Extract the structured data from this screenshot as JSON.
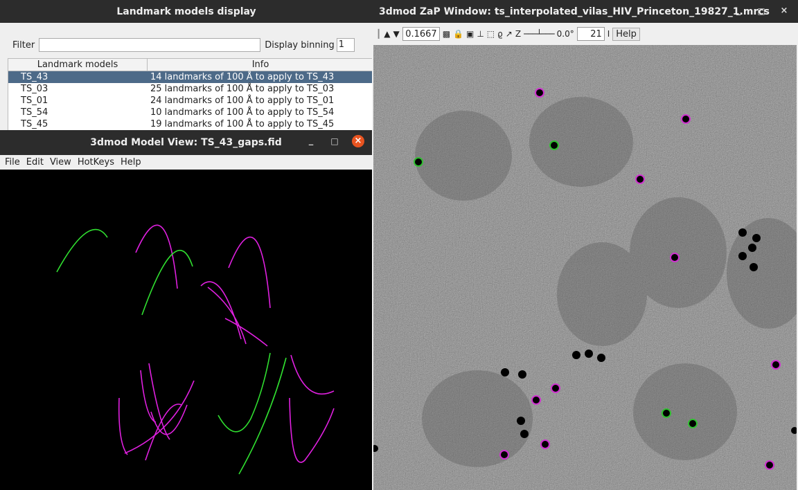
{
  "landmark_window": {
    "title": "Landmark models display",
    "filter_label": "Filter",
    "filter_value": "",
    "binning_label": "Display binning",
    "binning_value": "1",
    "columns": [
      "Landmark models",
      "Info"
    ],
    "rows": [
      {
        "model": "TS_43",
        "info": "14 landmarks of 100 Å to apply to TS_43",
        "selected": true
      },
      {
        "model": "TS_03",
        "info": "25 landmarks of 100 Å to apply to TS_03",
        "selected": false
      },
      {
        "model": "TS_01",
        "info": "24 landmarks of 100 Å to apply to TS_01",
        "selected": false
      },
      {
        "model": "TS_54",
        "info": "10 landmarks of 100 Å to apply to TS_54",
        "selected": false
      },
      {
        "model": "TS_45",
        "info": "19 landmarks of 100 Å to apply to TS_45",
        "selected": false
      }
    ]
  },
  "model_view": {
    "title": "3dmod Model View:  TS_43_gaps.fid",
    "menu": [
      "File",
      "Edit",
      "View",
      "HotKeys",
      "Help"
    ],
    "colors": {
      "magenta": "#e020e0",
      "green": "#30e030"
    }
  },
  "zap_window": {
    "title": "3dmod ZaP Window: ts_interpolated_vilas_HIV_Princeton_19827_1.mrcs",
    "zoom": "0.1667",
    "z_label": "Z",
    "angle": "0.0°",
    "section": "21",
    "help_label": "Help",
    "marker_colors": {
      "magenta": "#d030d0",
      "green": "#30c030"
    }
  },
  "window_controls": {
    "minimize": "_",
    "maximize": "□",
    "close": "×"
  }
}
